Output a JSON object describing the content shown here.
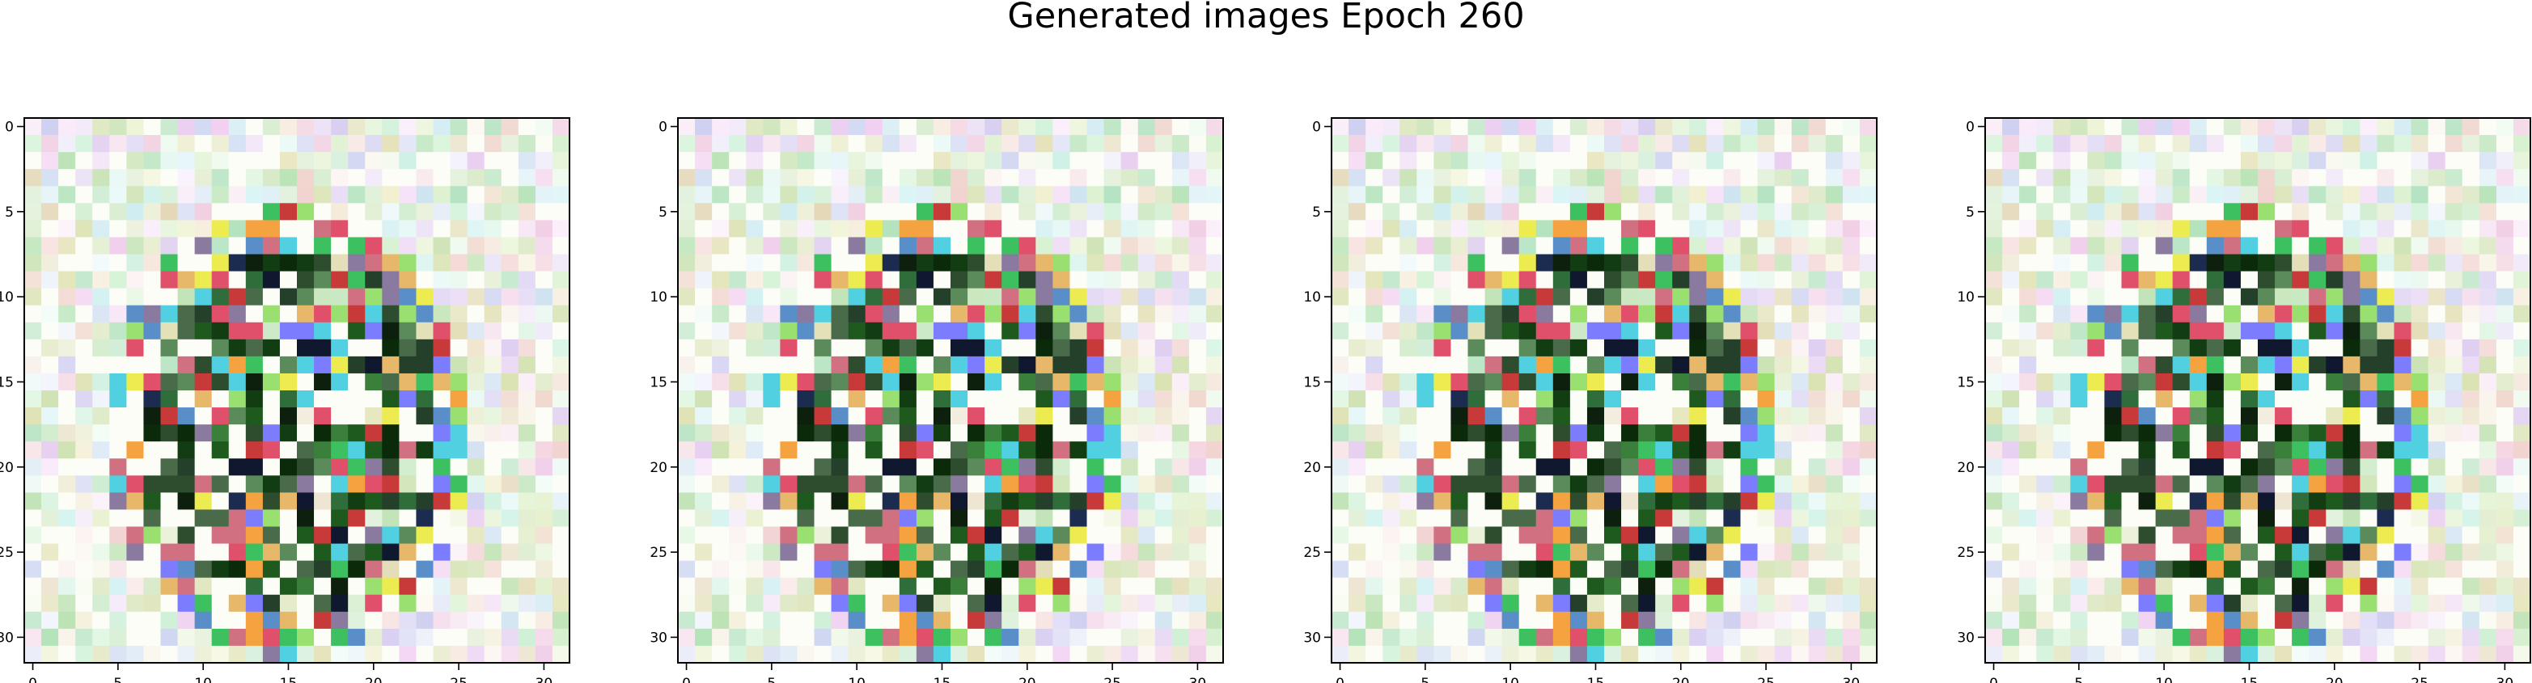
{
  "figure": {
    "title": "Generated images Epoch 260"
  },
  "chart_data": [
    {
      "type": "heatmap",
      "rows": 32,
      "cols": 32,
      "xlim": [
        -0.5,
        31.5
      ],
      "ylim": [
        31.5,
        -0.5
      ],
      "xticks": [
        0,
        5,
        10,
        15,
        20,
        25,
        30
      ],
      "yticks": [
        0,
        5,
        10,
        15,
        20,
        25,
        30
      ],
      "grid": false,
      "seed": 260,
      "image": "generated-rgb-image"
    },
    {
      "type": "heatmap",
      "rows": 32,
      "cols": 32,
      "xlim": [
        -0.5,
        31.5
      ],
      "ylim": [
        31.5,
        -0.5
      ],
      "xticks": [
        0,
        5,
        10,
        15,
        20,
        25,
        30
      ],
      "yticks": [
        0,
        5,
        10,
        15,
        20,
        25,
        30
      ],
      "grid": false,
      "seed": 260,
      "image": "generated-rgb-image"
    },
    {
      "type": "heatmap",
      "rows": 32,
      "cols": 32,
      "xlim": [
        -0.5,
        31.5
      ],
      "ylim": [
        31.5,
        -0.5
      ],
      "xticks": [
        0,
        5,
        10,
        15,
        20,
        25,
        30
      ],
      "yticks": [
        0,
        5,
        10,
        15,
        20,
        25,
        30
      ],
      "grid": false,
      "seed": 260,
      "image": "generated-rgb-image"
    },
    {
      "type": "heatmap",
      "rows": 32,
      "cols": 32,
      "xlim": [
        -0.5,
        31.5
      ],
      "ylim": [
        31.5,
        -0.5
      ],
      "xticks": [
        0,
        5,
        10,
        15,
        20,
        25,
        30
      ],
      "yticks": [
        0,
        5,
        10,
        15,
        20,
        25,
        30
      ],
      "grid": false,
      "seed": 260,
      "image": "generated-rgb-image"
    }
  ]
}
